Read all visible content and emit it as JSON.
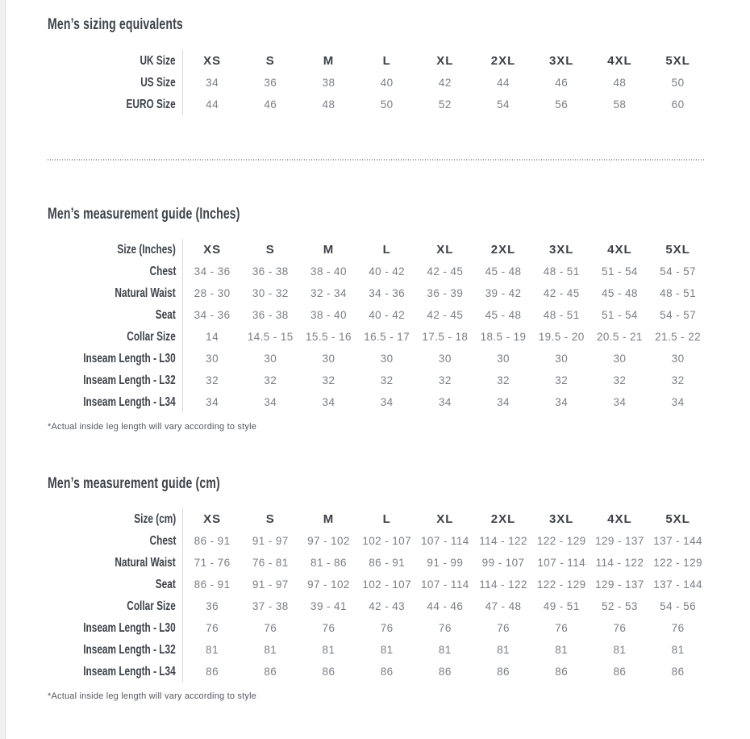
{
  "tables": [
    {
      "title": "Men’s sizing equivalents",
      "header_label": "UK Size",
      "columns": [
        "XS",
        "S",
        "M",
        "L",
        "XL",
        "2XL",
        "3XL",
        "4XL",
        "5XL"
      ],
      "rows": [
        {
          "label": "US Size",
          "values": [
            "34",
            "36",
            "38",
            "40",
            "42",
            "44",
            "46",
            "48",
            "50"
          ]
        },
        {
          "label": "EURO Size",
          "values": [
            "44",
            "46",
            "48",
            "50",
            "52",
            "54",
            "56",
            "58",
            "60"
          ]
        }
      ],
      "footnote": ""
    },
    {
      "title": "Men’s measurement guide (Inches)",
      "header_label": "Size (Inches)",
      "columns": [
        "XS",
        "S",
        "M",
        "L",
        "XL",
        "2XL",
        "3XL",
        "4XL",
        "5XL"
      ],
      "rows": [
        {
          "label": "Chest",
          "values": [
            "34 - 36",
            "36 - 38",
            "38 - 40",
            "40 - 42",
            "42 - 45",
            "45 - 48",
            "48 - 51",
            "51 - 54",
            "54 - 57"
          ]
        },
        {
          "label": "Natural Waist",
          "values": [
            "28 - 30",
            "30 - 32",
            "32 - 34",
            "34 - 36",
            "36 - 39",
            "39 - 42",
            "42 - 45",
            "45 - 48",
            "48 - 51"
          ]
        },
        {
          "label": "Seat",
          "values": [
            "34 - 36",
            "36 - 38",
            "38 - 40",
            "40 - 42",
            "42 - 45",
            "45 - 48",
            "48 - 51",
            "51 - 54",
            "54 - 57"
          ]
        },
        {
          "label": "Collar Size",
          "values": [
            "14",
            "14.5 - 15",
            "15.5 - 16",
            "16.5 - 17",
            "17.5 - 18",
            "18.5 - 19",
            "19.5 - 20",
            "20.5 - 21",
            "21.5 - 22"
          ]
        },
        {
          "label": "Inseam Length - L30",
          "values": [
            "30",
            "30",
            "30",
            "30",
            "30",
            "30",
            "30",
            "30",
            "30"
          ]
        },
        {
          "label": "Inseam Length - L32",
          "values": [
            "32",
            "32",
            "32",
            "32",
            "32",
            "32",
            "32",
            "32",
            "32"
          ]
        },
        {
          "label": "Inseam Length - L34",
          "values": [
            "34",
            "34",
            "34",
            "34",
            "34",
            "34",
            "34",
            "34",
            "34"
          ]
        }
      ],
      "footnote": "*Actual inside leg length will vary according to style"
    },
    {
      "title": "Men’s measurement guide (cm)",
      "header_label": "Size (cm)",
      "columns": [
        "XS",
        "S",
        "M",
        "L",
        "XL",
        "2XL",
        "3XL",
        "4XL",
        "5XL"
      ],
      "rows": [
        {
          "label": "Chest",
          "values": [
            "86 - 91",
            "91 - 97",
            "97 - 102",
            "102 - 107",
            "107 - 114",
            "114 - 122",
            "122 - 129",
            "129 - 137",
            "137 - 144"
          ]
        },
        {
          "label": "Natural Waist",
          "values": [
            "71 - 76",
            "76 - 81",
            "81 - 86",
            "86 - 91",
            "91 - 99",
            "99 - 107",
            "107 - 114",
            "114 - 122",
            "122 - 129"
          ]
        },
        {
          "label": "Seat",
          "values": [
            "86 - 91",
            "91 - 97",
            "97 - 102",
            "102 - 107",
            "107 - 114",
            "114 - 122",
            "122 - 129",
            "129 - 137",
            "137 - 144"
          ]
        },
        {
          "label": "Collar Size",
          "values": [
            "36",
            "37 - 38",
            "39 - 41",
            "42 - 43",
            "44 - 46",
            "47 - 48",
            "49 - 51",
            "52 - 53",
            "54 - 56"
          ]
        },
        {
          "label": "Inseam Length - L30",
          "values": [
            "76",
            "76",
            "76",
            "76",
            "76",
            "76",
            "76",
            "76",
            "76"
          ]
        },
        {
          "label": "Inseam Length - L32",
          "values": [
            "81",
            "81",
            "81",
            "81",
            "81",
            "81",
            "81",
            "81",
            "81"
          ]
        },
        {
          "label": "Inseam Length - L34",
          "values": [
            "86",
            "86",
            "86",
            "86",
            "86",
            "86",
            "86",
            "86",
            "86"
          ]
        }
      ],
      "footnote": "*Actual inside leg length will vary according to style"
    }
  ],
  "colors": {
    "heading_text": "#3e434a",
    "value_text": "#7b7e83",
    "separator_line": "#d8d9da",
    "dotted_divider": "#9a9a9a"
  }
}
